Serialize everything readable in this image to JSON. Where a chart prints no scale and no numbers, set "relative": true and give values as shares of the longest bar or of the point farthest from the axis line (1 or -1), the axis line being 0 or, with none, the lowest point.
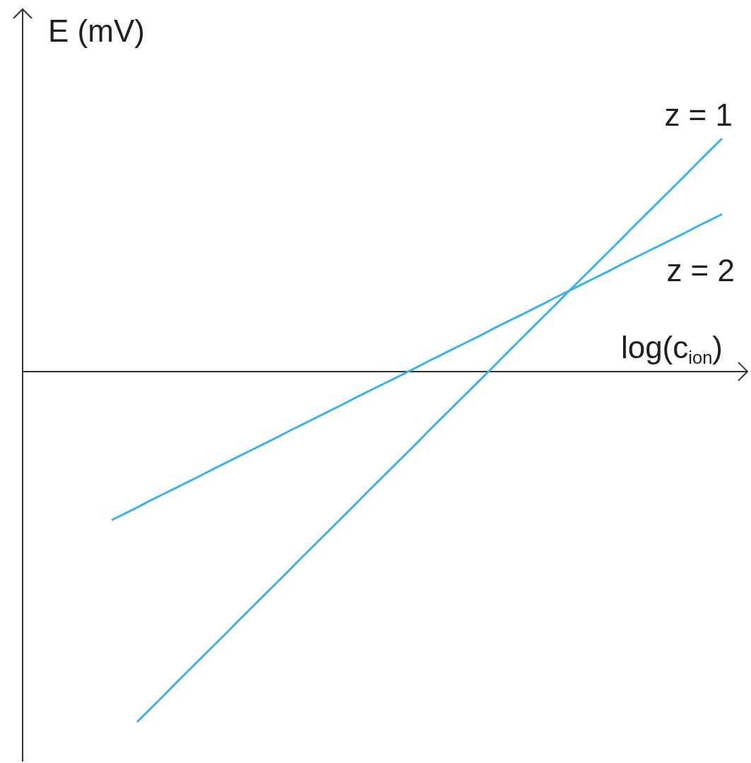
{
  "chart_data": {
    "type": "line",
    "xlabel": "log(c$_{ion}$)",
    "ylabel": "E (mV)",
    "relative": true,
    "marker": "none",
    "line_style": "solid",
    "tick_labels": false,
    "categories": [
      null,
      null,
      null,
      null,
      null,
      null,
      null,
      null,
      null,
      null,
      null,
      null,
      null,
      null,
      null,
      null,
      null,
      null,
      null,
      null,
      null,
      null,
      null,
      null,
      null,
      null,
      null,
      null,
      null,
      null,
      null,
      null,
      null,
      null,
      null,
      null,
      null,
      null,
      null,
      null,
      null,
      null,
      null,
      null,
      null,
      null,
      null,
      null,
      null,
      null,
      null,
      null,
      null,
      null,
      null,
      null,
      null,
      null
    ],
    "series": [
      {
        "name": "z = 1",
        "color": "#3eb1e8",
        "values": [
          null,
          null,
          null,
          null,
          null,
          null,
          null,
          null,
          null,
          -1.0,
          -0.964,
          -0.928,
          -0.891,
          -0.855,
          -0.819,
          -0.783,
          -0.747,
          -0.71,
          -0.674,
          -0.638,
          -0.602,
          -0.566,
          -0.529,
          -0.493,
          -0.457,
          -0.421,
          -0.385,
          -0.348,
          -0.312,
          -0.276,
          -0.24,
          -0.204,
          -0.167,
          -0.131,
          -0.095,
          -0.059,
          -0.023,
          0.013,
          0.05,
          0.086,
          0.122,
          0.158,
          0.194,
          0.231,
          0.267,
          0.303,
          0.339,
          0.375,
          0.412,
          0.448,
          0.484,
          0.52,
          0.556,
          0.593,
          0.629,
          0.665,
          null,
          null
        ]
      },
      {
        "name": "z = 2",
        "color": "#3eb1e8",
        "values": [
          null,
          null,
          null,
          null,
          null,
          null,
          null,
          -0.424,
          -0.406,
          -0.388,
          -0.369,
          -0.351,
          -0.333,
          -0.315,
          -0.297,
          -0.278,
          -0.26,
          -0.242,
          -0.224,
          -0.206,
          -0.188,
          -0.169,
          -0.151,
          -0.133,
          -0.115,
          -0.097,
          -0.078,
          -0.06,
          -0.042,
          -0.024,
          -0.006,
          0.012,
          0.031,
          0.049,
          0.067,
          0.085,
          0.103,
          0.122,
          0.14,
          0.158,
          0.176,
          0.194,
          0.213,
          0.231,
          0.249,
          0.267,
          0.285,
          0.304,
          0.322,
          0.34,
          0.358,
          0.376,
          0.394,
          0.413,
          0.431,
          0.449,
          null,
          null
        ]
      }
    ]
  }
}
